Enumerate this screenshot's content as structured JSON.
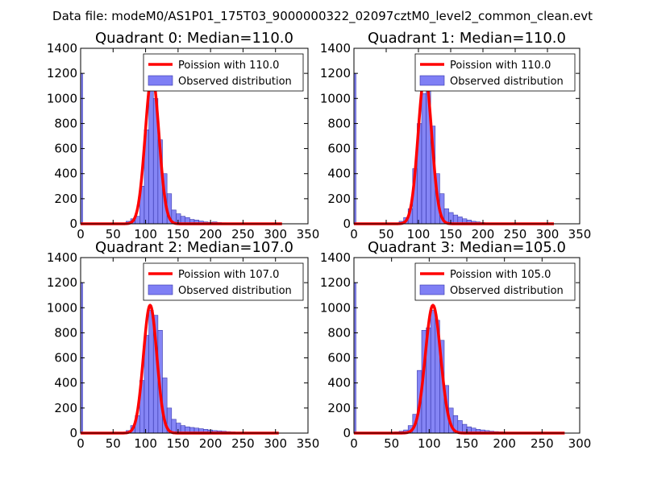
{
  "figure_title": "Data file: modeM0/AS1P01_175T03_9000000322_02097cztM0_level2_common_clean.evt",
  "colors": {
    "bar_fill": "#7f7ff5",
    "bar_edge": "#3333aa",
    "curve": "#ff0000"
  },
  "chart_data": [
    {
      "type": "bar",
      "title": "Quadrant 0: Median=110.0",
      "median": 110.0,
      "legend": [
        "Poission with 110.0",
        "Observed distribution"
      ],
      "legend_position": "top-right",
      "xlim": [
        0,
        350
      ],
      "ylim": [
        0,
        1400
      ],
      "xticks": [
        0,
        50,
        100,
        150,
        200,
        250,
        300,
        350
      ],
      "yticks": [
        0,
        200,
        400,
        600,
        800,
        1000,
        1200,
        1400
      ],
      "bin_width": 7,
      "zero_bin": 1200,
      "bins": [
        [
          70,
          20
        ],
        [
          77,
          40
        ],
        [
          84,
          60
        ],
        [
          91,
          300
        ],
        [
          98,
          750
        ],
        [
          105,
          1080
        ],
        [
          112,
          1000
        ],
        [
          119,
          670
        ],
        [
          126,
          400
        ],
        [
          133,
          240
        ],
        [
          140,
          110
        ],
        [
          147,
          80
        ],
        [
          154,
          60
        ],
        [
          161,
          50
        ],
        [
          168,
          35
        ],
        [
          175,
          30
        ],
        [
          182,
          22
        ],
        [
          189,
          15
        ],
        [
          196,
          12
        ],
        [
          203,
          15
        ],
        [
          210,
          10
        ],
        [
          217,
          8
        ],
        [
          224,
          6
        ],
        [
          231,
          5
        ],
        [
          238,
          4
        ],
        [
          245,
          3
        ],
        [
          252,
          2
        ],
        [
          259,
          2
        ],
        [
          266,
          1
        ],
        [
          273,
          1
        ],
        [
          280,
          1
        ],
        [
          287,
          1
        ],
        [
          294,
          1
        ],
        [
          301,
          1
        ]
      ],
      "curve_x_range": [
        0,
        310
      ],
      "curve_peak": 1190
    },
    {
      "type": "bar",
      "title": "Quadrant 1: Median=110.0",
      "median": 110.0,
      "legend": [
        "Poission with 110.0",
        "Observed distribution"
      ],
      "legend_position": "top-right",
      "xlim": [
        0,
        350
      ],
      "ylim": [
        0,
        1400
      ],
      "xticks": [
        0,
        50,
        100,
        150,
        200,
        250,
        300,
        350
      ],
      "yticks": [
        0,
        200,
        400,
        600,
        800,
        1000,
        1200,
        1400
      ],
      "bin_width": 7,
      "zero_bin": 1200,
      "bins": [
        [
          70,
          20
        ],
        [
          77,
          50
        ],
        [
          84,
          120
        ],
        [
          91,
          440
        ],
        [
          98,
          800
        ],
        [
          105,
          1040
        ],
        [
          112,
          1160
        ],
        [
          119,
          780
        ],
        [
          126,
          400
        ],
        [
          133,
          240
        ],
        [
          140,
          120
        ],
        [
          147,
          90
        ],
        [
          154,
          70
        ],
        [
          161,
          55
        ],
        [
          168,
          40
        ],
        [
          175,
          30
        ],
        [
          182,
          20
        ],
        [
          189,
          15
        ],
        [
          196,
          10
        ],
        [
          203,
          8
        ],
        [
          210,
          6
        ],
        [
          217,
          5
        ],
        [
          224,
          4
        ],
        [
          231,
          3
        ],
        [
          238,
          2
        ],
        [
          245,
          2
        ],
        [
          252,
          1
        ],
        [
          259,
          1
        ],
        [
          266,
          1
        ],
        [
          273,
          1
        ],
        [
          280,
          1
        ],
        [
          287,
          1
        ],
        [
          294,
          1
        ],
        [
          301,
          1
        ]
      ],
      "curve_x_range": [
        0,
        310
      ],
      "curve_peak": 1190
    },
    {
      "type": "bar",
      "title": "Quadrant 2: Median=107.0",
      "median": 107.0,
      "legend": [
        "Poission with 107.0",
        "Observed distribution"
      ],
      "legend_position": "top-right",
      "xlim": [
        0,
        350
      ],
      "ylim": [
        0,
        1400
      ],
      "xticks": [
        0,
        50,
        100,
        150,
        200,
        250,
        300,
        350
      ],
      "yticks": [
        0,
        200,
        400,
        600,
        800,
        1000,
        1200,
        1400
      ],
      "bin_width": 7,
      "zero_bin": 1200,
      "bins": [
        [
          70,
          20
        ],
        [
          77,
          60
        ],
        [
          84,
          140
        ],
        [
          91,
          420
        ],
        [
          98,
          780
        ],
        [
          105,
          980
        ],
        [
          112,
          940
        ],
        [
          119,
          820
        ],
        [
          126,
          440
        ],
        [
          133,
          200
        ],
        [
          140,
          110
        ],
        [
          147,
          80
        ],
        [
          154,
          60
        ],
        [
          161,
          50
        ],
        [
          168,
          45
        ],
        [
          175,
          40
        ],
        [
          182,
          35
        ],
        [
          189,
          30
        ],
        [
          196,
          25
        ],
        [
          203,
          20
        ],
        [
          210,
          18
        ],
        [
          217,
          15
        ],
        [
          224,
          12
        ],
        [
          231,
          10
        ],
        [
          238,
          8
        ],
        [
          245,
          6
        ],
        [
          252,
          5
        ],
        [
          259,
          4
        ],
        [
          266,
          3
        ],
        [
          273,
          2
        ],
        [
          280,
          2
        ],
        [
          287,
          1
        ],
        [
          294,
          1
        ],
        [
          301,
          1
        ]
      ],
      "curve_x_range": [
        0,
        305
      ],
      "curve_peak": 1020
    },
    {
      "type": "bar",
      "title": "Quadrant 3: Median=105.0",
      "median": 105.0,
      "legend": [
        "Poission with 105.0",
        "Observed distribution"
      ],
      "legend_position": "top-right",
      "xlim": [
        0,
        300
      ],
      "ylim": [
        0,
        1400
      ],
      "xticks": [
        0,
        50,
        100,
        150,
        200,
        250,
        300
      ],
      "yticks": [
        0,
        200,
        400,
        600,
        800,
        1000,
        1200,
        1400
      ],
      "bin_width": 6,
      "zero_bin": 1200,
      "bins": [
        [
          54,
          10
        ],
        [
          60,
          15
        ],
        [
          66,
          25
        ],
        [
          72,
          60
        ],
        [
          78,
          150
        ],
        [
          84,
          500
        ],
        [
          90,
          820
        ],
        [
          96,
          840
        ],
        [
          102,
          980
        ],
        [
          108,
          900
        ],
        [
          114,
          740
        ],
        [
          120,
          380
        ],
        [
          126,
          200
        ],
        [
          132,
          140
        ],
        [
          138,
          100
        ],
        [
          144,
          70
        ],
        [
          150,
          50
        ],
        [
          156,
          40
        ],
        [
          162,
          30
        ],
        [
          168,
          25
        ],
        [
          174,
          20
        ],
        [
          180,
          15
        ],
        [
          186,
          12
        ],
        [
          192,
          10
        ],
        [
          198,
          8
        ],
        [
          204,
          6
        ],
        [
          210,
          5
        ],
        [
          216,
          4
        ],
        [
          222,
          3
        ],
        [
          228,
          2
        ],
        [
          234,
          2
        ],
        [
          240,
          1
        ],
        [
          246,
          1
        ],
        [
          252,
          1
        ],
        [
          258,
          1
        ],
        [
          264,
          1
        ],
        [
          270,
          1
        ],
        [
          276,
          1
        ]
      ],
      "curve_x_range": [
        0,
        280
      ],
      "curve_peak": 1020
    }
  ]
}
